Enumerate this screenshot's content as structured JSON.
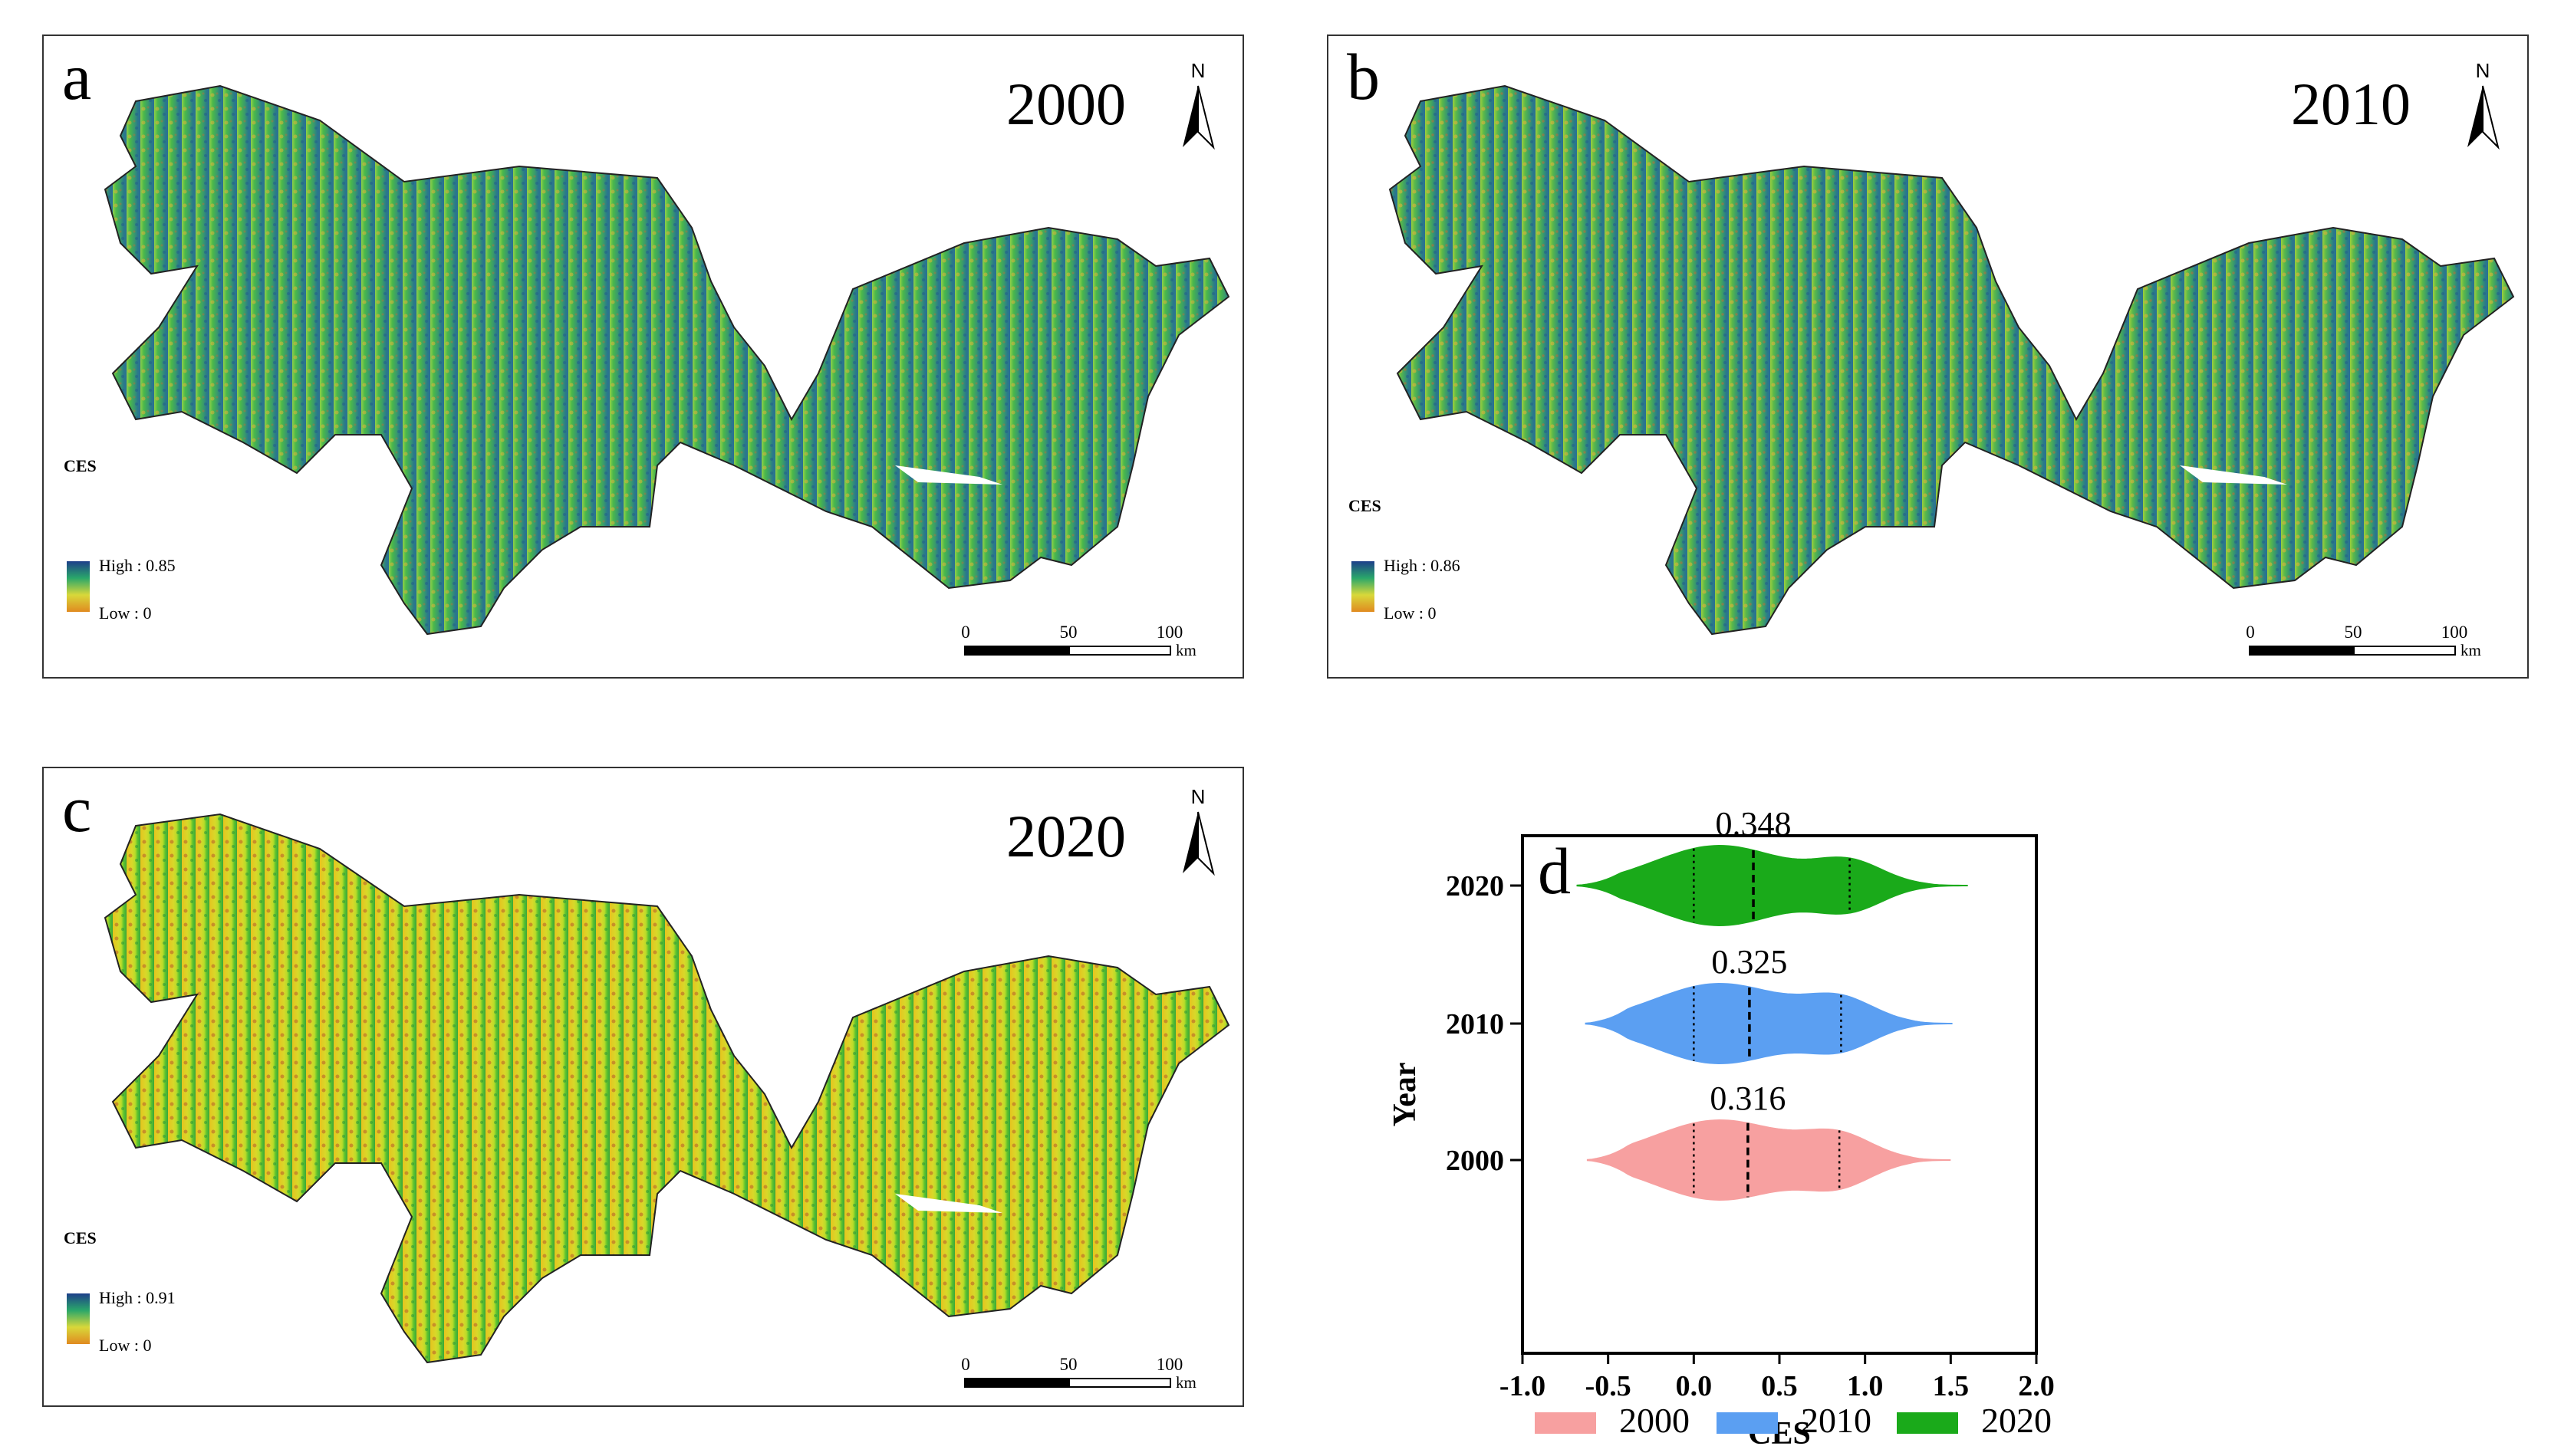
{
  "panels": [
    {
      "letter": "a",
      "year": "2000",
      "north": "N",
      "legend_title": "CES",
      "legend_high": "High : 0.85",
      "legend_low": "Low : 0",
      "scale_ticks": [
        "0",
        "50",
        "100"
      ],
      "scale_unit": "km",
      "palette": "blue-green-yellow-orange"
    },
    {
      "letter": "b",
      "year": "2010",
      "north": "N",
      "legend_title": "CES",
      "legend_high": "High : 0.86",
      "legend_low": "Low : 0",
      "scale_ticks": [
        "0",
        "50",
        "100"
      ],
      "scale_unit": "km",
      "palette": "blue-green-yellow-orange"
    },
    {
      "letter": "c",
      "year": "2020",
      "north": "N",
      "legend_title": "CES",
      "legend_high": "High : 0.91",
      "legend_low": "Low : 0",
      "scale_ticks": [
        "0",
        "50",
        "100"
      ],
      "scale_unit": "km",
      "palette": "green-yellow-brown"
    }
  ],
  "chart_panel_letter": "d",
  "chart_data": {
    "type": "violin",
    "orientation": "horizontal",
    "xlabel": "CES",
    "ylabel": "Year",
    "xlim": [
      -1.0,
      2.0
    ],
    "xticks": [
      "-1.0",
      "-0.5",
      "0.0",
      "0.5",
      "1.0",
      "1.5",
      "2.0"
    ],
    "categories": [
      "2000",
      "2010",
      "2020"
    ],
    "series": [
      {
        "name": "2000",
        "color": "#f7a0a0",
        "median": 0.316,
        "median_label": "0.316",
        "q1": 0.0,
        "q3": 0.85,
        "min": -0.62,
        "max": 1.5
      },
      {
        "name": "2010",
        "color": "#5b9ff2",
        "median": 0.325,
        "median_label": "0.325",
        "q1": 0.0,
        "q3": 0.86,
        "min": -0.63,
        "max": 1.51
      },
      {
        "name": "2020",
        "color": "#1aaa1a",
        "median": 0.348,
        "median_label": "0.348",
        "q1": 0.0,
        "q3": 0.91,
        "min": -0.68,
        "max": 1.6
      }
    ],
    "legend_position": "bottom"
  }
}
